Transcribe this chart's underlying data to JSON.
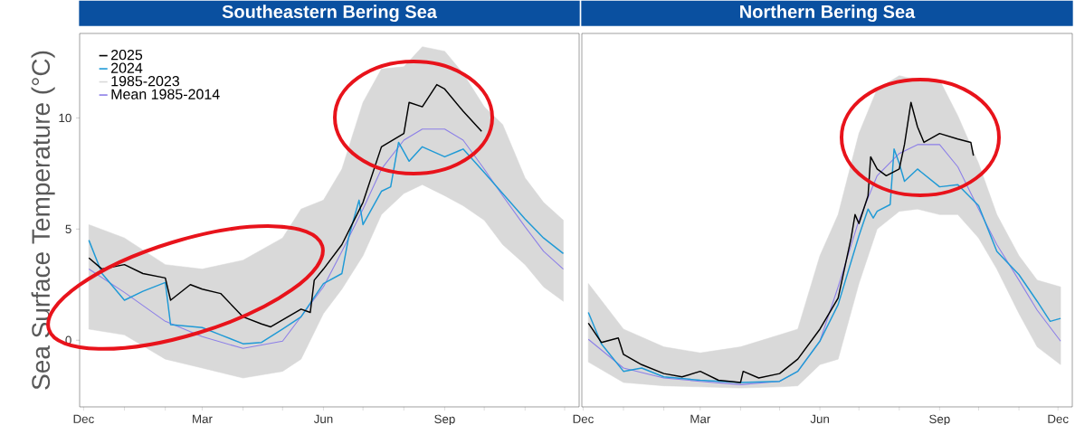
{
  "chart_data": [
    {
      "type": "line",
      "title": "Southeastern Bering Sea",
      "ylabel": "Sea Surface Temperature (°C)",
      "xlim": [
        "2024-11-28",
        "2025-12-12"
      ],
      "ylim": [
        -3,
        13.8
      ],
      "yticks": [
        0,
        5,
        10
      ],
      "xticks": [
        {
          "value": "2024-12-01",
          "label": "Dec"
        },
        {
          "value": "2025-01-01",
          "label": null
        },
        {
          "value": "2025-02-01",
          "label": null
        },
        {
          "value": "2025-03-01",
          "label": "Mar"
        },
        {
          "value": "2025-04-01",
          "label": null
        },
        {
          "value": "2025-05-01",
          "label": null
        },
        {
          "value": "2025-06-01",
          "label": "Jun"
        },
        {
          "value": "2025-07-01",
          "label": null
        },
        {
          "value": "2025-08-01",
          "label": null
        },
        {
          "value": "2025-09-01",
          "label": "Sep"
        },
        {
          "value": "2025-10-01",
          "label": null
        },
        {
          "value": "2025-11-01",
          "label": null
        },
        {
          "value": "2025-12-01",
          "label": null
        }
      ],
      "legend": "top left",
      "grid": false,
      "series": [
        {
          "name": "2025",
          "color": "#000000",
          "x": [
            "2024-12-05",
            "2024-12-15",
            "2025-01-01",
            "2025-01-15",
            "2025-02-01",
            "2025-02-05",
            "2025-02-20",
            "2025-03-01",
            "2025-03-15",
            "2025-04-01",
            "2025-04-15",
            "2025-04-22",
            "2025-05-15",
            "2025-05-22",
            "2025-05-25",
            "2025-06-01",
            "2025-06-15",
            "2025-07-01",
            "2025-07-15",
            "2025-08-01",
            "2025-08-05",
            "2025-08-15",
            "2025-08-26",
            "2025-09-01",
            "2025-09-15",
            "2025-09-29"
          ],
          "values": [
            3.7,
            3.2,
            3.4,
            3.0,
            2.8,
            1.8,
            2.5,
            2.3,
            2.1,
            1.05,
            0.73,
            0.6,
            1.4,
            1.25,
            2.7,
            3.2,
            4.3,
            6.2,
            8.7,
            9.3,
            10.7,
            10.5,
            11.5,
            11.3,
            10.3,
            9.4
          ]
        },
        {
          "name": "2024",
          "color": "#1f9ad6",
          "x": [
            "2024-12-05",
            "2024-12-15",
            "2025-01-01",
            "2025-01-15",
            "2025-02-01",
            "2025-02-05",
            "2025-03-01",
            "2025-03-15",
            "2025-04-01",
            "2025-04-15",
            "2025-05-01",
            "2025-05-15",
            "2025-06-01",
            "2025-06-15",
            "2025-06-20",
            "2025-06-28",
            "2025-07-01",
            "2025-07-15",
            "2025-07-22",
            "2025-07-28",
            "2025-08-05",
            "2025-08-15",
            "2025-09-01",
            "2025-09-15",
            "2025-10-01",
            "2025-10-15",
            "2025-11-01",
            "2025-11-15",
            "2025-11-30"
          ],
          "values": [
            4.5,
            3.0,
            1.8,
            2.2,
            2.6,
            0.7,
            0.57,
            0.24,
            -0.16,
            -0.1,
            0.5,
            1.05,
            2.55,
            3.0,
            4.6,
            6.3,
            5.2,
            6.7,
            6.9,
            8.9,
            8.05,
            8.7,
            8.25,
            8.6,
            7.55,
            6.6,
            5.45,
            4.6,
            3.9
          ]
        },
        {
          "name": "1985-2023",
          "color": "#d9d9d9",
          "x": [
            "2024-12-05",
            "2025-01-01",
            "2025-02-01",
            "2025-03-01",
            "2025-04-01",
            "2025-05-01",
            "2025-05-15",
            "2025-06-01",
            "2025-06-15",
            "2025-07-01",
            "2025-07-15",
            "2025-08-01",
            "2025-08-15",
            "2025-09-01",
            "2025-09-15",
            "2025-10-01",
            "2025-10-15",
            "2025-11-01",
            "2025-11-15",
            "2025-11-30"
          ],
          "values": [
            null,
            null,
            null,
            null,
            null,
            null,
            null,
            null,
            null,
            null,
            null,
            null,
            null,
            null,
            null,
            null,
            null,
            null,
            null,
            null
          ],
          "lower": [
            0.5,
            0.24,
            -0.85,
            -1.25,
            -1.7,
            -1.4,
            -0.85,
            1.2,
            2.3,
            3.8,
            5.65,
            6.6,
            7.0,
            6.5,
            6.05,
            5.4,
            4.3,
            3.4,
            2.4,
            1.75
          ],
          "upper": [
            5.2,
            4.6,
            3.4,
            3.2,
            3.6,
            4.6,
            5.9,
            6.3,
            7.7,
            10.7,
            12.2,
            12.3,
            13.2,
            13.0,
            12.0,
            10.5,
            9.7,
            7.3,
            6.2,
            5.4
          ]
        },
        {
          "name": "Mean 1985-2014",
          "color": "#8c7fe8",
          "x": [
            "2024-12-05",
            "2025-01-01",
            "2025-02-01",
            "2025-03-01",
            "2025-04-01",
            "2025-05-01",
            "2025-06-01",
            "2025-06-15",
            "2025-07-01",
            "2025-07-15",
            "2025-08-01",
            "2025-08-15",
            "2025-09-01",
            "2025-09-15",
            "2025-10-01",
            "2025-10-15",
            "2025-11-01",
            "2025-11-15",
            "2025-11-30"
          ],
          "values": [
            3.2,
            2.15,
            0.85,
            0.16,
            -0.37,
            -0.04,
            2.4,
            4.0,
            5.9,
            7.7,
            9.0,
            9.5,
            9.5,
            9.0,
            7.7,
            6.5,
            5.1,
            4.0,
            3.2
          ]
        }
      ]
    },
    {
      "type": "line",
      "title": "Northern Bering Sea",
      "tick_labels": "x",
      "xlim": [
        "2024-11-30",
        "2025-12-12"
      ],
      "ylim": [
        -3,
        13.8
      ],
      "yticks": [
        0,
        5,
        10
      ],
      "xticks": [
        {
          "value": "2024-12-01",
          "label": "Dec"
        },
        {
          "value": "2025-01-01",
          "label": null
        },
        {
          "value": "2025-02-01",
          "label": null
        },
        {
          "value": "2025-03-01",
          "label": "Mar"
        },
        {
          "value": "2025-04-01",
          "label": null
        },
        {
          "value": "2025-05-01",
          "label": null
        },
        {
          "value": "2025-06-01",
          "label": "Jun"
        },
        {
          "value": "2025-07-01",
          "label": null
        },
        {
          "value": "2025-08-01",
          "label": null
        },
        {
          "value": "2025-09-01",
          "label": "Sep"
        },
        {
          "value": "2025-10-01",
          "label": null
        },
        {
          "value": "2025-11-01",
          "label": null
        },
        {
          "value": "2025-12-01",
          "label": "Dec"
        }
      ],
      "grid": false,
      "series": [
        {
          "color": "#000000",
          "x": [
            "2024-12-05",
            "2024-12-15",
            "2024-12-28",
            "2025-01-01",
            "2025-01-15",
            "2025-02-01",
            "2025-02-15",
            "2025-03-01",
            "2025-03-15",
            "2025-04-01",
            "2025-04-03",
            "2025-04-15",
            "2025-05-01",
            "2025-05-15",
            "2025-06-01",
            "2025-06-15",
            "2025-06-25",
            "2025-06-28",
            "2025-07-01",
            "2025-07-08",
            "2025-07-10",
            "2025-07-15",
            "2025-07-22",
            "2025-08-01",
            "2025-08-05",
            "2025-08-10",
            "2025-08-15",
            "2025-08-20",
            "2025-09-01",
            "2025-09-15",
            "2025-09-25",
            "2025-09-27"
          ],
          "values": [
            0.77,
            -0.1,
            0.1,
            -0.64,
            -1.1,
            -1.5,
            -1.65,
            -1.4,
            -1.8,
            -1.9,
            -1.4,
            -1.7,
            -1.5,
            -0.85,
            0.5,
            1.9,
            4.6,
            5.65,
            5.25,
            6.5,
            8.25,
            7.7,
            7.4,
            7.7,
            8.8,
            10.7,
            9.6,
            8.9,
            9.3,
            9.05,
            8.9,
            8.3
          ]
        },
        {
          "color": "#1f9ad6",
          "x": [
            "2024-12-05",
            "2024-12-15",
            "2025-01-01",
            "2025-01-15",
            "2025-02-01",
            "2025-03-01",
            "2025-04-01",
            "2025-05-01",
            "2025-05-15",
            "2025-06-01",
            "2025-06-15",
            "2025-07-01",
            "2025-07-08",
            "2025-07-12",
            "2025-07-15",
            "2025-07-25",
            "2025-07-28",
            "2025-08-01",
            "2025-08-05",
            "2025-08-15",
            "2025-09-01",
            "2025-09-15",
            "2025-10-01",
            "2025-10-15",
            "2025-11-01",
            "2025-11-15",
            "2025-11-25",
            "2025-12-03"
          ],
          "values": [
            1.25,
            -0.16,
            -1.4,
            -1.25,
            -1.65,
            -1.8,
            -1.9,
            -1.85,
            -1.4,
            -0.04,
            1.6,
            4.7,
            5.9,
            5.5,
            5.8,
            6.1,
            8.6,
            7.95,
            7.15,
            7.7,
            6.9,
            7.0,
            6.05,
            4.0,
            2.95,
            1.75,
            0.85,
            0.98
          ]
        },
        {
          "color": "#d9d9d9",
          "x": [
            "2024-12-05",
            "2025-01-01",
            "2025-02-01",
            "2025-03-01",
            "2025-04-01",
            "2025-05-01",
            "2025-05-15",
            "2025-06-01",
            "2025-06-15",
            "2025-07-01",
            "2025-07-15",
            "2025-08-01",
            "2025-08-15",
            "2025-09-01",
            "2025-09-15",
            "2025-10-01",
            "2025-10-15",
            "2025-11-01",
            "2025-11-15",
            "2025-12-03"
          ],
          "values": [
            null,
            null,
            null,
            null,
            null,
            null,
            null,
            null,
            null,
            null,
            null,
            null,
            null,
            null,
            null,
            null,
            null,
            null,
            null,
            null
          ],
          "lower": [
            -0.98,
            -1.9,
            -2.05,
            -2.1,
            -2.15,
            -2.1,
            -2.05,
            -1.1,
            -0.85,
            2.55,
            5.0,
            5.8,
            5.9,
            5.65,
            5.65,
            4.6,
            3.2,
            1.2,
            -0.3,
            -1.1
          ],
          "upper": [
            2.55,
            0.5,
            -0.3,
            -0.57,
            -0.3,
            0.24,
            0.5,
            3.8,
            5.65,
            9.3,
            11.3,
            11.9,
            11.7,
            11.7,
            10.1,
            7.95,
            5.65,
            3.8,
            2.7,
            2.4
          ]
        },
        {
          "color": "#8c7fe8",
          "x": [
            "2024-12-05",
            "2025-01-01",
            "2025-02-01",
            "2025-03-01",
            "2025-04-01",
            "2025-05-01",
            "2025-05-15",
            "2025-06-01",
            "2025-06-15",
            "2025-07-01",
            "2025-07-15",
            "2025-08-01",
            "2025-08-15",
            "2025-09-01",
            "2025-09-15",
            "2025-10-01",
            "2025-10-15",
            "2025-11-01",
            "2025-11-15",
            "2025-12-03"
          ],
          "values": [
            0.04,
            -1.25,
            -1.7,
            -1.85,
            -2.0,
            -1.85,
            -1.4,
            -0.04,
            2.4,
            5.4,
            7.4,
            8.4,
            8.8,
            8.8,
            7.8,
            5.9,
            4.3,
            2.7,
            1.35,
            -0.04
          ]
        }
      ]
    }
  ]
}
